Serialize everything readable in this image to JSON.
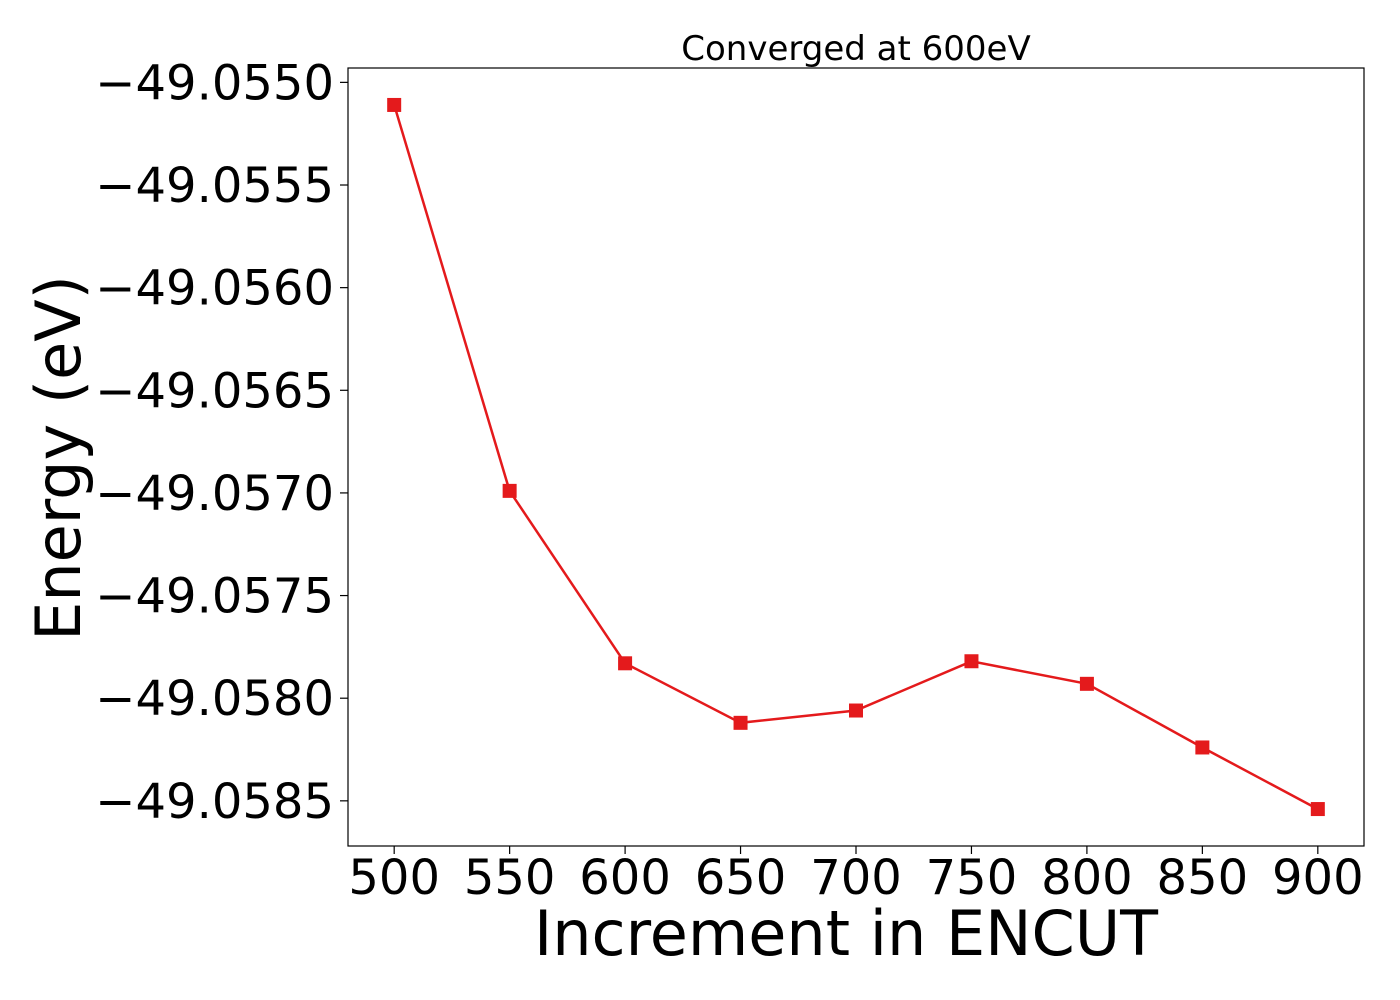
{
  "chart_data": {
    "type": "line",
    "title": "Converged at 600eV",
    "xlabel": "Increment in ENCUT",
    "ylabel": "Energy (eV)",
    "x": [
      500,
      550,
      600,
      650,
      700,
      750,
      800,
      850,
      900
    ],
    "series": [
      {
        "values": [
          -49.05511,
          -49.05699,
          -49.05783,
          -49.05812,
          -49.05806,
          -49.05782,
          -49.05793,
          -49.05824,
          -49.05854
        ],
        "color": "#e41a1c",
        "marker": "square"
      }
    ],
    "xticks": [
      500,
      550,
      600,
      650,
      700,
      750,
      800,
      850,
      900
    ],
    "xtick_labels": [
      "500",
      "550",
      "600",
      "650",
      "700",
      "750",
      "800",
      "850",
      "900"
    ],
    "yticks": [
      -49.055,
      -49.0555,
      -49.056,
      -49.0565,
      -49.057,
      -49.0575,
      -49.058,
      -49.0585
    ],
    "ytick_labels": [
      "−49.0550",
      "−49.0555",
      "−49.0560",
      "−49.0565",
      "−49.0570",
      "−49.0575",
      "−49.0580",
      "−49.0585"
    ],
    "xlim": [
      480,
      920
    ],
    "ylim": [
      -49.05872,
      -49.05493
    ],
    "grid": false,
    "legend": "none"
  }
}
